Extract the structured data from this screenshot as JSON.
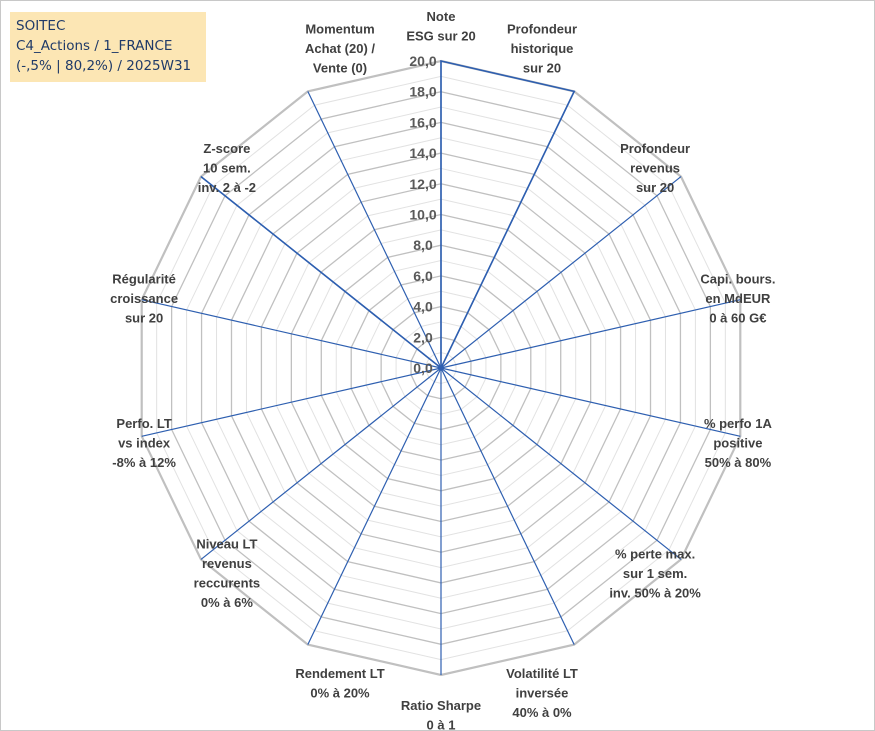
{
  "header": {
    "line1": "SOITEC",
    "line2": "C4_Actions / 1_FRANCE",
    "line3": "(-,5% | 80,2%) / 2025W31"
  },
  "colors": {
    "grid_major": "#c0c0c0",
    "grid_minor": "#e2e2e2",
    "spoke": "#2e5fb0",
    "series": "#2e5fb0",
    "info_bg": "#fce6b4",
    "info_text": "#1f3a68"
  },
  "chart_data": {
    "type": "radar",
    "rlim": [
      0,
      20
    ],
    "tick_labels": [
      "0,0",
      "2,0",
      "4,0",
      "6,0",
      "8,0",
      "10,0",
      "12,0",
      "14,0",
      "16,0",
      "18,0",
      "20,0"
    ],
    "axes": [
      [
        "Note",
        "ESG sur 20"
      ],
      [
        "Profondeur",
        "historique",
        "sur 20"
      ],
      [
        "Profondeur",
        "revenus",
        "sur 20"
      ],
      [
        "Capi. bours.",
        "en MdEUR",
        "0 à 60 G€"
      ],
      [
        "% perfo 1A",
        "positive",
        "50% à 80%"
      ],
      [
        "% perte max.",
        "sur 1 sem.",
        "inv. 50% à 20%"
      ],
      [
        "Volatilité LT",
        "inversée",
        "40% à 0%"
      ],
      [
        "Ratio Sharpe",
        "0 à 1"
      ],
      [
        "Rendement LT",
        "0% à 20%"
      ],
      [
        "Niveau LT",
        "revenus",
        "reccurents",
        "0% à 6%"
      ],
      [
        "Perfo. LT",
        "vs index",
        "-8% à 12%"
      ],
      [
        "Régularité",
        "croissance",
        "sur 20"
      ],
      [
        "Z-score",
        "10 sem.",
        "inv. 2 à -2"
      ],
      [
        "Momentum",
        "Achat (20) /",
        "Vente (0)"
      ]
    ],
    "series": [
      {
        "values": [
          20,
          20,
          0,
          0,
          0,
          0,
          0,
          0,
          0,
          0,
          0,
          0,
          20,
          0
        ]
      }
    ],
    "grid": true,
    "legend": "none"
  }
}
